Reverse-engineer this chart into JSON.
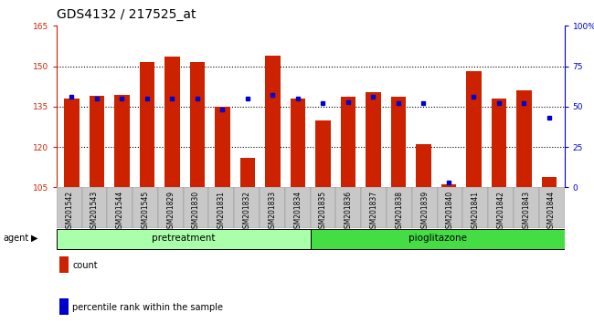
{
  "title": "GDS4132 / 217525_at",
  "samples": [
    "GSM201542",
    "GSM201543",
    "GSM201544",
    "GSM201545",
    "GSM201829",
    "GSM201830",
    "GSM201831",
    "GSM201832",
    "GSM201833",
    "GSM201834",
    "GSM201835",
    "GSM201836",
    "GSM201837",
    "GSM201838",
    "GSM201839",
    "GSM201840",
    "GSM201841",
    "GSM201842",
    "GSM201843",
    "GSM201844"
  ],
  "counts": [
    138,
    139,
    139.5,
    151.5,
    153.5,
    151.5,
    135,
    116,
    154,
    138,
    130,
    138.5,
    140.5,
    138.5,
    121,
    106,
    148,
    138,
    141,
    109
  ],
  "percentiles": [
    56,
    55,
    55,
    55,
    55,
    55,
    48,
    55,
    57,
    55,
    52,
    53,
    56,
    52,
    52,
    3,
    56,
    52,
    52,
    43
  ],
  "pretreatment_count": 10,
  "pioglitazone_count": 10,
  "ymin": 105,
  "ymax": 165,
  "yticks": [
    105,
    120,
    135,
    150,
    165
  ],
  "right_yticks": [
    0,
    25,
    50,
    75,
    100
  ],
  "bar_color": "#cc2200",
  "dot_color": "#0000cc",
  "bg_color": "#ffffff",
  "plot_bg": "#ffffff",
  "label_count": "count",
  "label_percentile": "percentile rank within the sample",
  "pretreatment_label": "pretreatment",
  "pioglitazone_label": "pioglitazone",
  "agent_label": "agent",
  "title_fontsize": 10,
  "tick_fontsize": 6.5,
  "bar_width": 0.6,
  "left_axis_color": "#cc2200",
  "right_axis_color": "#0000cc",
  "grey_tick_bg": "#c8c8c8",
  "pretreatment_color": "#aaffaa",
  "pioglitazone_color": "#44dd44"
}
